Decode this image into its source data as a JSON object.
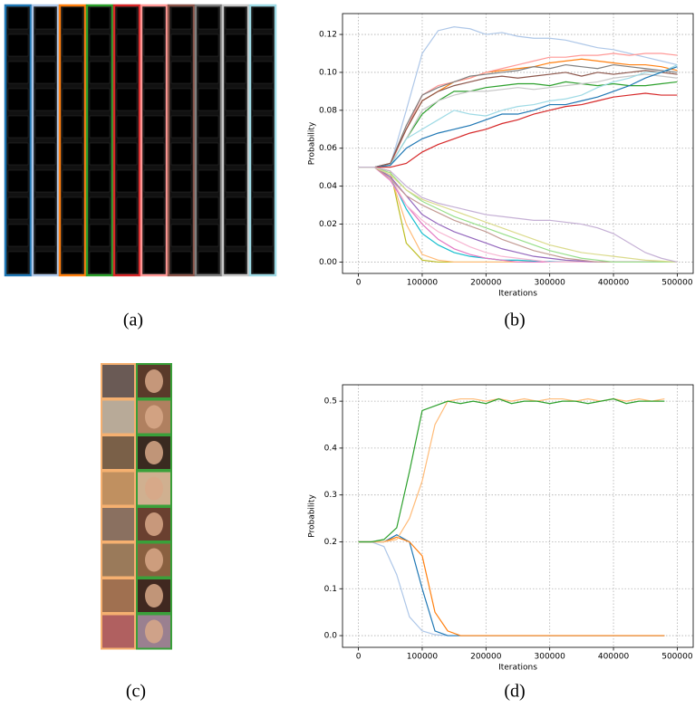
{
  "panels": [
    {
      "label": "(a)"
    },
    {
      "label": "(b)"
    },
    {
      "label": "(c)"
    },
    {
      "label": "(d)"
    }
  ],
  "chart_data": [
    {
      "type": "line",
      "x_label": "Iterations",
      "y_label": "Probability",
      "x": [
        0,
        25000,
        50000,
        75000,
        100000,
        125000,
        150000,
        175000,
        200000,
        225000,
        250000,
        275000,
        300000,
        325000,
        350000,
        375000,
        400000,
        425000,
        450000,
        475000,
        500000
      ],
      "xlim": [
        -25000,
        525000
      ],
      "ylim": [
        -0.006,
        0.131
      ],
      "grid": true,
      "xticks": [
        0,
        100000,
        200000,
        300000,
        400000,
        500000
      ],
      "yticks": [
        {
          "value": 0,
          "label": "0.00"
        },
        {
          "value": 0.02,
          "label": "0.02"
        },
        {
          "value": 0.04,
          "label": "0.04"
        },
        {
          "value": 0.06,
          "label": "0.06"
        },
        {
          "value": 0.08,
          "label": "0.08"
        },
        {
          "value": 0.1,
          "label": "0.10"
        },
        {
          "value": 0.12,
          "label": "0.12"
        }
      ],
      "series": [
        {
          "color": "#aec7e8",
          "values": [
            0.05,
            0.05,
            0.051,
            0.08,
            0.11,
            0.122,
            0.124,
            0.123,
            0.12,
            0.121,
            0.119,
            0.118,
            0.118,
            0.117,
            0.115,
            0.113,
            0.112,
            0.11,
            0.108,
            0.106,
            0.104
          ]
        },
        {
          "color": "#ff7f0e",
          "values": [
            0.05,
            0.05,
            0.052,
            0.07,
            0.085,
            0.09,
            0.095,
            0.097,
            0.1,
            0.101,
            0.102,
            0.103,
            0.105,
            0.106,
            0.107,
            0.106,
            0.105,
            0.104,
            0.104,
            0.103,
            0.101
          ]
        },
        {
          "color": "#ff9896",
          "values": [
            0.05,
            0.05,
            0.051,
            0.07,
            0.088,
            0.093,
            0.095,
            0.097,
            0.1,
            0.102,
            0.104,
            0.106,
            0.108,
            0.108,
            0.109,
            0.109,
            0.11,
            0.109,
            0.11,
            0.11,
            0.109
          ]
        },
        {
          "color": "#7f7f7f",
          "values": [
            0.05,
            0.05,
            0.052,
            0.072,
            0.088,
            0.092,
            0.095,
            0.098,
            0.099,
            0.1,
            0.101,
            0.103,
            0.102,
            0.104,
            0.103,
            0.102,
            0.104,
            0.103,
            0.102,
            0.101,
            0.1
          ]
        },
        {
          "color": "#8c564b",
          "values": [
            0.05,
            0.05,
            0.052,
            0.07,
            0.085,
            0.09,
            0.093,
            0.095,
            0.097,
            0.098,
            0.097,
            0.098,
            0.099,
            0.1,
            0.098,
            0.1,
            0.099,
            0.1,
            0.101,
            0.1,
            0.099
          ]
        },
        {
          "color": "#2ca02c",
          "values": [
            0.05,
            0.05,
            0.051,
            0.065,
            0.078,
            0.085,
            0.09,
            0.09,
            0.092,
            0.093,
            0.094,
            0.094,
            0.093,
            0.095,
            0.094,
            0.093,
            0.094,
            0.093,
            0.093,
            0.094,
            0.095
          ]
        },
        {
          "color": "#c7c7c7",
          "values": [
            0.05,
            0.05,
            0.051,
            0.065,
            0.08,
            0.085,
            0.088,
            0.09,
            0.09,
            0.091,
            0.092,
            0.091,
            0.092,
            0.093,
            0.094,
            0.095,
            0.097,
            0.098,
            0.099,
            0.098,
            0.097
          ]
        },
        {
          "color": "#9edae5",
          "values": [
            0.05,
            0.05,
            0.051,
            0.065,
            0.07,
            0.075,
            0.08,
            0.078,
            0.077,
            0.08,
            0.082,
            0.083,
            0.085,
            0.086,
            0.088,
            0.092,
            0.095,
            0.097,
            0.1,
            0.1,
            0.104
          ]
        },
        {
          "color": "#1f77b4",
          "values": [
            0.05,
            0.05,
            0.051,
            0.06,
            0.065,
            0.068,
            0.07,
            0.072,
            0.075,
            0.078,
            0.078,
            0.08,
            0.083,
            0.083,
            0.085,
            0.087,
            0.09,
            0.093,
            0.097,
            0.1,
            0.103
          ]
        },
        {
          "color": "#d62728",
          "values": [
            0.05,
            0.05,
            0.05,
            0.052,
            0.058,
            0.062,
            0.065,
            0.068,
            0.07,
            0.073,
            0.075,
            0.078,
            0.08,
            0.082,
            0.083,
            0.085,
            0.087,
            0.088,
            0.089,
            0.088,
            0.088
          ]
        },
        {
          "color": "#bcbd22",
          "values": [
            0.05,
            0.05,
            0.048,
            0.01,
            0.001,
            0,
            0,
            0,
            0,
            0,
            0,
            0,
            0,
            0,
            0,
            0,
            0,
            0,
            0,
            0,
            0
          ]
        },
        {
          "color": "#ffbb78",
          "values": [
            0.05,
            0.05,
            0.046,
            0.02,
            0.004,
            0.001,
            0,
            0,
            0,
            0,
            0,
            0,
            0,
            0,
            0,
            0,
            0,
            0,
            0,
            0,
            0
          ]
        },
        {
          "color": "#17becf",
          "values": [
            0.05,
            0.05,
            0.045,
            0.028,
            0.015,
            0.009,
            0.005,
            0.003,
            0.002,
            0.001,
            0.001,
            0.0005,
            0.0003,
            0,
            0,
            0,
            0,
            0,
            0,
            0,
            0
          ]
        },
        {
          "color": "#e377c2",
          "values": [
            0.05,
            0.05,
            0.043,
            0.03,
            0.02,
            0.012,
            0.007,
            0.004,
            0.002,
            0.001,
            0,
            0,
            0,
            0,
            0,
            0,
            0,
            0,
            0,
            0,
            0
          ]
        },
        {
          "color": "#f7b6d2",
          "values": [
            0.05,
            0.05,
            0.045,
            0.03,
            0.022,
            0.016,
            0.012,
            0.008,
            0.005,
            0.003,
            0.002,
            0.001,
            0,
            0,
            0,
            0,
            0,
            0,
            0,
            0,
            0
          ]
        },
        {
          "color": "#9467bd",
          "values": [
            0.05,
            0.05,
            0.045,
            0.035,
            0.025,
            0.02,
            0.016,
            0.013,
            0.01,
            0.007,
            0.005,
            0.003,
            0.002,
            0.001,
            0.0005,
            0,
            0,
            0,
            0,
            0,
            0
          ]
        },
        {
          "color": "#c49c94",
          "values": [
            0.05,
            0.05,
            0.044,
            0.035,
            0.03,
            0.026,
            0.022,
            0.019,
            0.016,
            0.012,
            0.009,
            0.006,
            0.004,
            0.002,
            0.001,
            0,
            0,
            0,
            0,
            0,
            0
          ]
        },
        {
          "color": "#98df8a",
          "values": [
            0.05,
            0.05,
            0.047,
            0.038,
            0.032,
            0.028,
            0.024,
            0.021,
            0.018,
            0.015,
            0.012,
            0.009,
            0.006,
            0.004,
            0.002,
            0.001,
            0,
            0,
            0,
            0,
            0
          ]
        },
        {
          "color": "#dbdb8d",
          "values": [
            0.05,
            0.05,
            0.046,
            0.038,
            0.033,
            0.03,
            0.027,
            0.024,
            0.021,
            0.018,
            0.015,
            0.012,
            0.009,
            0.007,
            0.005,
            0.004,
            0.003,
            0.002,
            0.001,
            0.0005,
            0
          ]
        },
        {
          "color": "#c5b0d5",
          "values": [
            0.05,
            0.05,
            0.048,
            0.04,
            0.034,
            0.031,
            0.029,
            0.027,
            0.025,
            0.024,
            0.023,
            0.022,
            0.022,
            0.021,
            0.02,
            0.018,
            0.015,
            0.01,
            0.005,
            0.002,
            0
          ]
        }
      ]
    },
    {
      "type": "line",
      "x_label": "Iterations",
      "y_label": "Probability",
      "x": [
        0,
        20000,
        40000,
        60000,
        80000,
        100000,
        120000,
        140000,
        160000,
        180000,
        200000,
        220000,
        240000,
        260000,
        280000,
        300000,
        320000,
        340000,
        360000,
        380000,
        400000,
        420000,
        440000,
        460000,
        480000
      ],
      "xlim": [
        -25000,
        525000
      ],
      "ylim": [
        -0.025,
        0.535
      ],
      "grid": true,
      "xticks": [
        0,
        100000,
        200000,
        300000,
        400000,
        500000
      ],
      "yticks": [
        {
          "value": 0,
          "label": "0.0"
        },
        0.1,
        0.2,
        0.3,
        0.4,
        0.5
      ],
      "series": [
        {
          "color": "#aec7e8",
          "values": [
            0.2,
            0.2,
            0.19,
            0.13,
            0.04,
            0.01,
            0.002,
            0,
            0,
            0,
            0,
            0,
            0,
            0,
            0,
            0,
            0,
            0,
            0,
            0,
            0,
            0,
            0,
            0,
            0
          ]
        },
        {
          "color": "#1f77b4",
          "values": [
            0.2,
            0.2,
            0.2,
            0.215,
            0.2,
            0.1,
            0.01,
            0,
            0,
            0,
            0,
            0,
            0,
            0,
            0,
            0,
            0,
            0,
            0,
            0,
            0,
            0,
            0,
            0,
            0
          ]
        },
        {
          "color": "#ff7f0e",
          "values": [
            0.2,
            0.2,
            0.2,
            0.21,
            0.2,
            0.17,
            0.05,
            0.01,
            0,
            0,
            0,
            0,
            0,
            0,
            0,
            0,
            0,
            0,
            0,
            0,
            0,
            0,
            0,
            0,
            0
          ]
        },
        {
          "color": "#ffbb78",
          "values": [
            0.2,
            0.2,
            0.2,
            0.205,
            0.25,
            0.33,
            0.45,
            0.5,
            0.505,
            0.505,
            0.5,
            0.505,
            0.5,
            0.505,
            0.5,
            0.505,
            0.505,
            0.5,
            0.505,
            0.5,
            0.505,
            0.5,
            0.505,
            0.5,
            0.505
          ]
        },
        {
          "color": "#2ca02c",
          "values": [
            0.2,
            0.2,
            0.205,
            0.23,
            0.35,
            0.48,
            0.49,
            0.5,
            0.495,
            0.5,
            0.495,
            0.505,
            0.495,
            0.5,
            0.5,
            0.495,
            0.5,
            0.5,
            0.495,
            0.5,
            0.505,
            0.495,
            0.5,
            0.5,
            0.5
          ]
        }
      ]
    }
  ]
}
